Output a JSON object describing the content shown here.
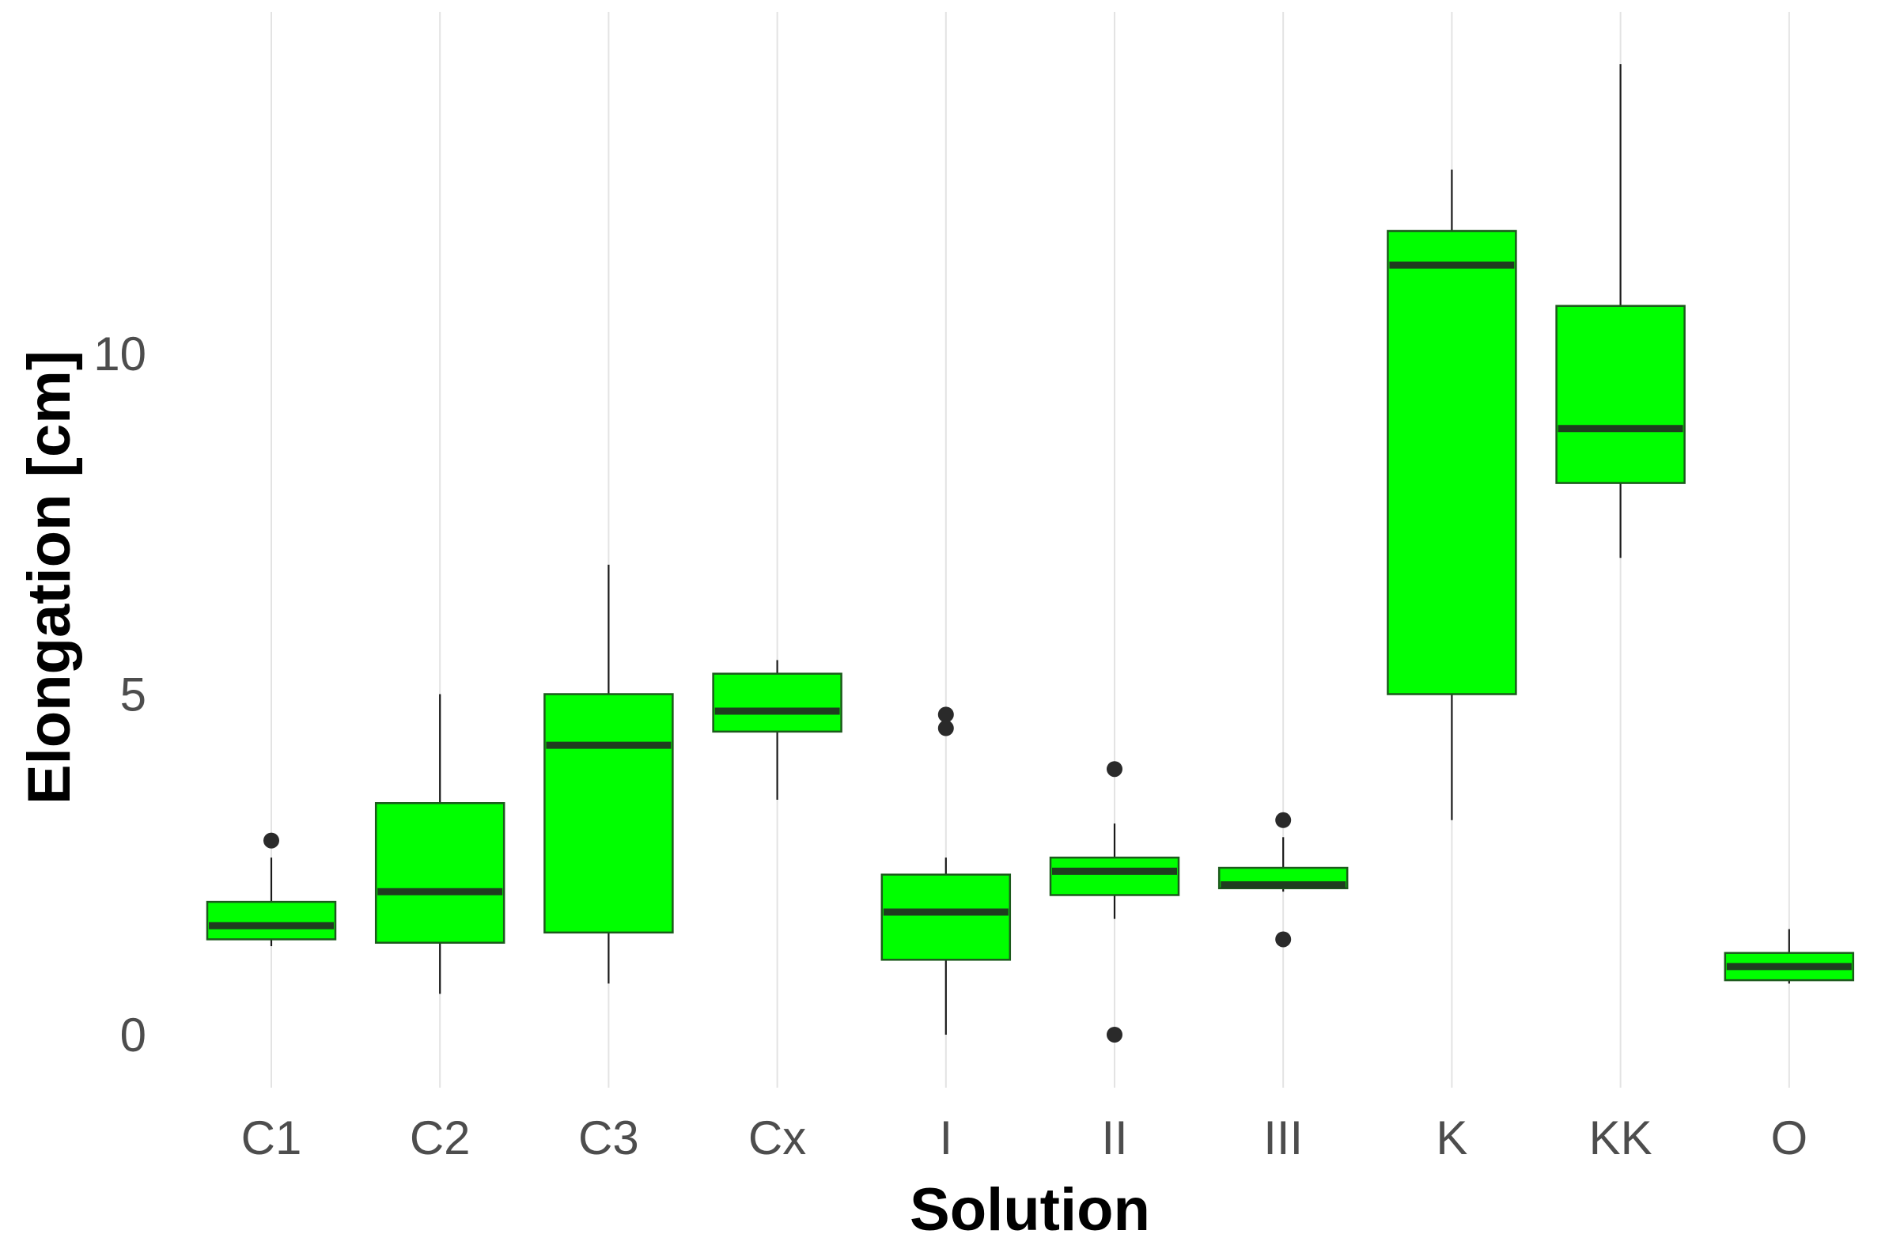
{
  "chart_data": {
    "type": "boxplot",
    "xlabel": "Solution",
    "ylabel": "Elongation [cm]",
    "categories": [
      "C1",
      "C2",
      "C3",
      "Cx",
      "I",
      "II",
      "III",
      "K",
      "KK",
      "O"
    ],
    "ylim": [
      -0.8,
      15.0
    ],
    "yticks": [
      0,
      5,
      10
    ],
    "grid": true,
    "legend": "none",
    "box_color": "#00ff00",
    "boxes": [
      {
        "category": "C1",
        "whisker_low": 1.3,
        "q1": 1.4,
        "median": 1.6,
        "q3": 1.95,
        "whisker_high": 2.6,
        "outliers": [
          2.85
        ]
      },
      {
        "category": "C2",
        "whisker_low": 0.6,
        "q1": 1.35,
        "median": 2.1,
        "q3": 3.4,
        "whisker_high": 5.0,
        "outliers": []
      },
      {
        "category": "C3",
        "whisker_low": 0.75,
        "q1": 1.5,
        "median": 4.25,
        "q3": 5.0,
        "whisker_high": 6.9,
        "outliers": []
      },
      {
        "category": "Cx",
        "whisker_low": 3.45,
        "q1": 4.45,
        "median": 4.75,
        "q3": 5.3,
        "whisker_high": 5.5,
        "outliers": []
      },
      {
        "category": "I",
        "whisker_low": 0.0,
        "q1": 1.1,
        "median": 1.8,
        "q3": 2.35,
        "whisker_high": 2.6,
        "outliers": [
          4.5,
          4.7
        ]
      },
      {
        "category": "II",
        "whisker_low": 1.7,
        "q1": 2.05,
        "median": 2.4,
        "q3": 2.6,
        "whisker_high": 3.1,
        "outliers": [
          3.9,
          0.0
        ]
      },
      {
        "category": "III",
        "whisker_low": 2.1,
        "q1": 2.15,
        "median": 2.2,
        "q3": 2.45,
        "whisker_high": 2.9,
        "outliers": [
          3.15,
          1.4
        ]
      },
      {
        "category": "K",
        "whisker_low": 3.15,
        "q1": 5.0,
        "median": 11.3,
        "q3": 11.8,
        "whisker_high": 12.7,
        "outliers": []
      },
      {
        "category": "KK",
        "whisker_low": 7.0,
        "q1": 8.1,
        "median": 8.9,
        "q3": 10.7,
        "whisker_high": 14.25,
        "outliers": []
      },
      {
        "category": "O",
        "whisker_low": 0.75,
        "q1": 0.8,
        "median": 1.0,
        "q3": 1.2,
        "whisker_high": 1.55,
        "outliers": []
      }
    ]
  }
}
